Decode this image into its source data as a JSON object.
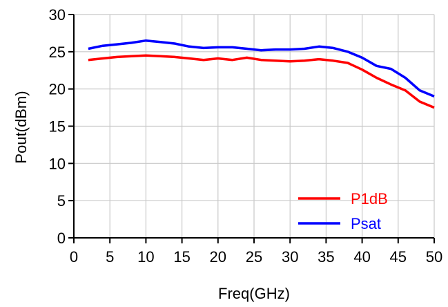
{
  "chart_data": {
    "type": "line",
    "title": "",
    "xlabel": "Freq(GHz)",
    "ylabel": "Pout(dBm)",
    "xlim": [
      0,
      50
    ],
    "ylim": [
      0,
      30
    ],
    "xticks": [
      0,
      5,
      10,
      15,
      20,
      25,
      30,
      35,
      40,
      45,
      50
    ],
    "yticks": [
      0,
      5,
      10,
      15,
      20,
      25,
      30
    ],
    "grid": true,
    "legend_position": "bottom-right",
    "series": [
      {
        "name": "P1dB",
        "color": "#ff0000",
        "x": [
          2,
          4,
          6,
          8,
          10,
          12,
          14,
          16,
          18,
          20,
          22,
          24,
          26,
          28,
          30,
          32,
          34,
          36,
          38,
          40,
          42,
          44,
          46,
          48,
          50
        ],
        "values": [
          23.9,
          24.1,
          24.3,
          24.4,
          24.5,
          24.4,
          24.3,
          24.1,
          23.9,
          24.1,
          23.9,
          24.2,
          23.9,
          23.8,
          23.7,
          23.8,
          24.0,
          23.8,
          23.5,
          22.6,
          21.5,
          20.6,
          19.8,
          18.3,
          17.5
        ]
      },
      {
        "name": "Psat",
        "color": "#0000ff",
        "x": [
          2,
          4,
          6,
          8,
          10,
          12,
          14,
          16,
          18,
          20,
          22,
          24,
          26,
          28,
          30,
          32,
          34,
          36,
          38,
          40,
          42,
          44,
          46,
          48,
          50
        ],
        "values": [
          25.4,
          25.8,
          26.0,
          26.2,
          26.5,
          26.3,
          26.1,
          25.7,
          25.5,
          25.6,
          25.6,
          25.4,
          25.2,
          25.3,
          25.3,
          25.4,
          25.7,
          25.5,
          25.0,
          24.2,
          23.1,
          22.7,
          21.5,
          19.8,
          19.0
        ]
      }
    ]
  }
}
